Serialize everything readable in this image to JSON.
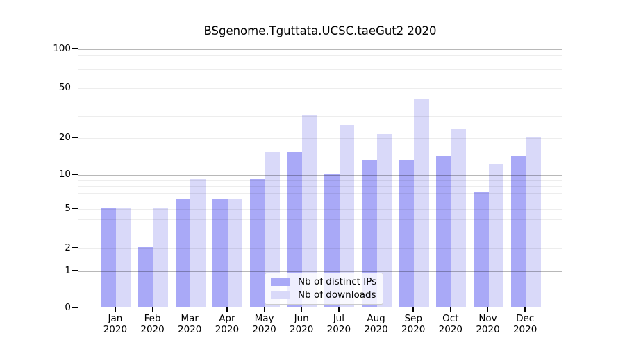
{
  "title": "BSgenome.Tguttata.UCSC.taeGut2 2020",
  "colors": {
    "ips_bar": "#a9a9f7",
    "downloads_bar": "#d9d9f9",
    "axis": "#000000",
    "grid_major": "rgba(0,0,0,0.28)",
    "grid_minor": "rgba(0,0,0,0.07)",
    "legend_border": "#cccccc",
    "text": "#000000"
  },
  "legend": {
    "items": [
      {
        "label": "Nb of distinct IPs",
        "color_key": "ips_bar"
      },
      {
        "label": "Nb of downloads",
        "color_key": "downloads_bar"
      }
    ]
  },
  "y_axis": {
    "ticks": [
      100,
      50,
      20,
      10,
      5,
      2,
      1,
      0
    ],
    "major_gridlines": [
      1,
      10,
      100
    ],
    "minor_gridlines": [
      2,
      3,
      4,
      5,
      6,
      7,
      8,
      9,
      20,
      30,
      40,
      50,
      60,
      70,
      80,
      90
    ],
    "scale": "log10(1+x)"
  },
  "x_axis": {
    "months": [
      "Jan",
      "Feb",
      "Mar",
      "Apr",
      "May",
      "Jun",
      "Jul",
      "Aug",
      "Sep",
      "Oct",
      "Nov",
      "Dec"
    ],
    "year": "2020"
  },
  "chart_data": {
    "type": "bar",
    "title": "BSgenome.Tguttata.UCSC.taeGut2 2020",
    "categories": [
      "Jan 2020",
      "Feb 2020",
      "Mar 2020",
      "Apr 2020",
      "May 2020",
      "Jun 2020",
      "Jul 2020",
      "Aug 2020",
      "Sep 2020",
      "Oct 2020",
      "Nov 2020",
      "Dec 2020"
    ],
    "series": [
      {
        "name": "Nb of distinct IPs",
        "color": "#a9a9f7",
        "values": [
          5,
          2,
          6,
          6,
          9,
          15,
          10,
          13,
          13,
          14,
          7,
          14
        ]
      },
      {
        "name": "Nb of downloads",
        "color": "#d9d9f9",
        "values": [
          5,
          5,
          9,
          6,
          15,
          30,
          25,
          21,
          40,
          23,
          12,
          20
        ]
      }
    ],
    "yscale": "log10(1+x)",
    "yticks": [
      0,
      1,
      2,
      5,
      10,
      20,
      50,
      100
    ],
    "ylim": [
      0,
      113
    ],
    "grid": "horizontal",
    "legend_position": "lower-center"
  }
}
